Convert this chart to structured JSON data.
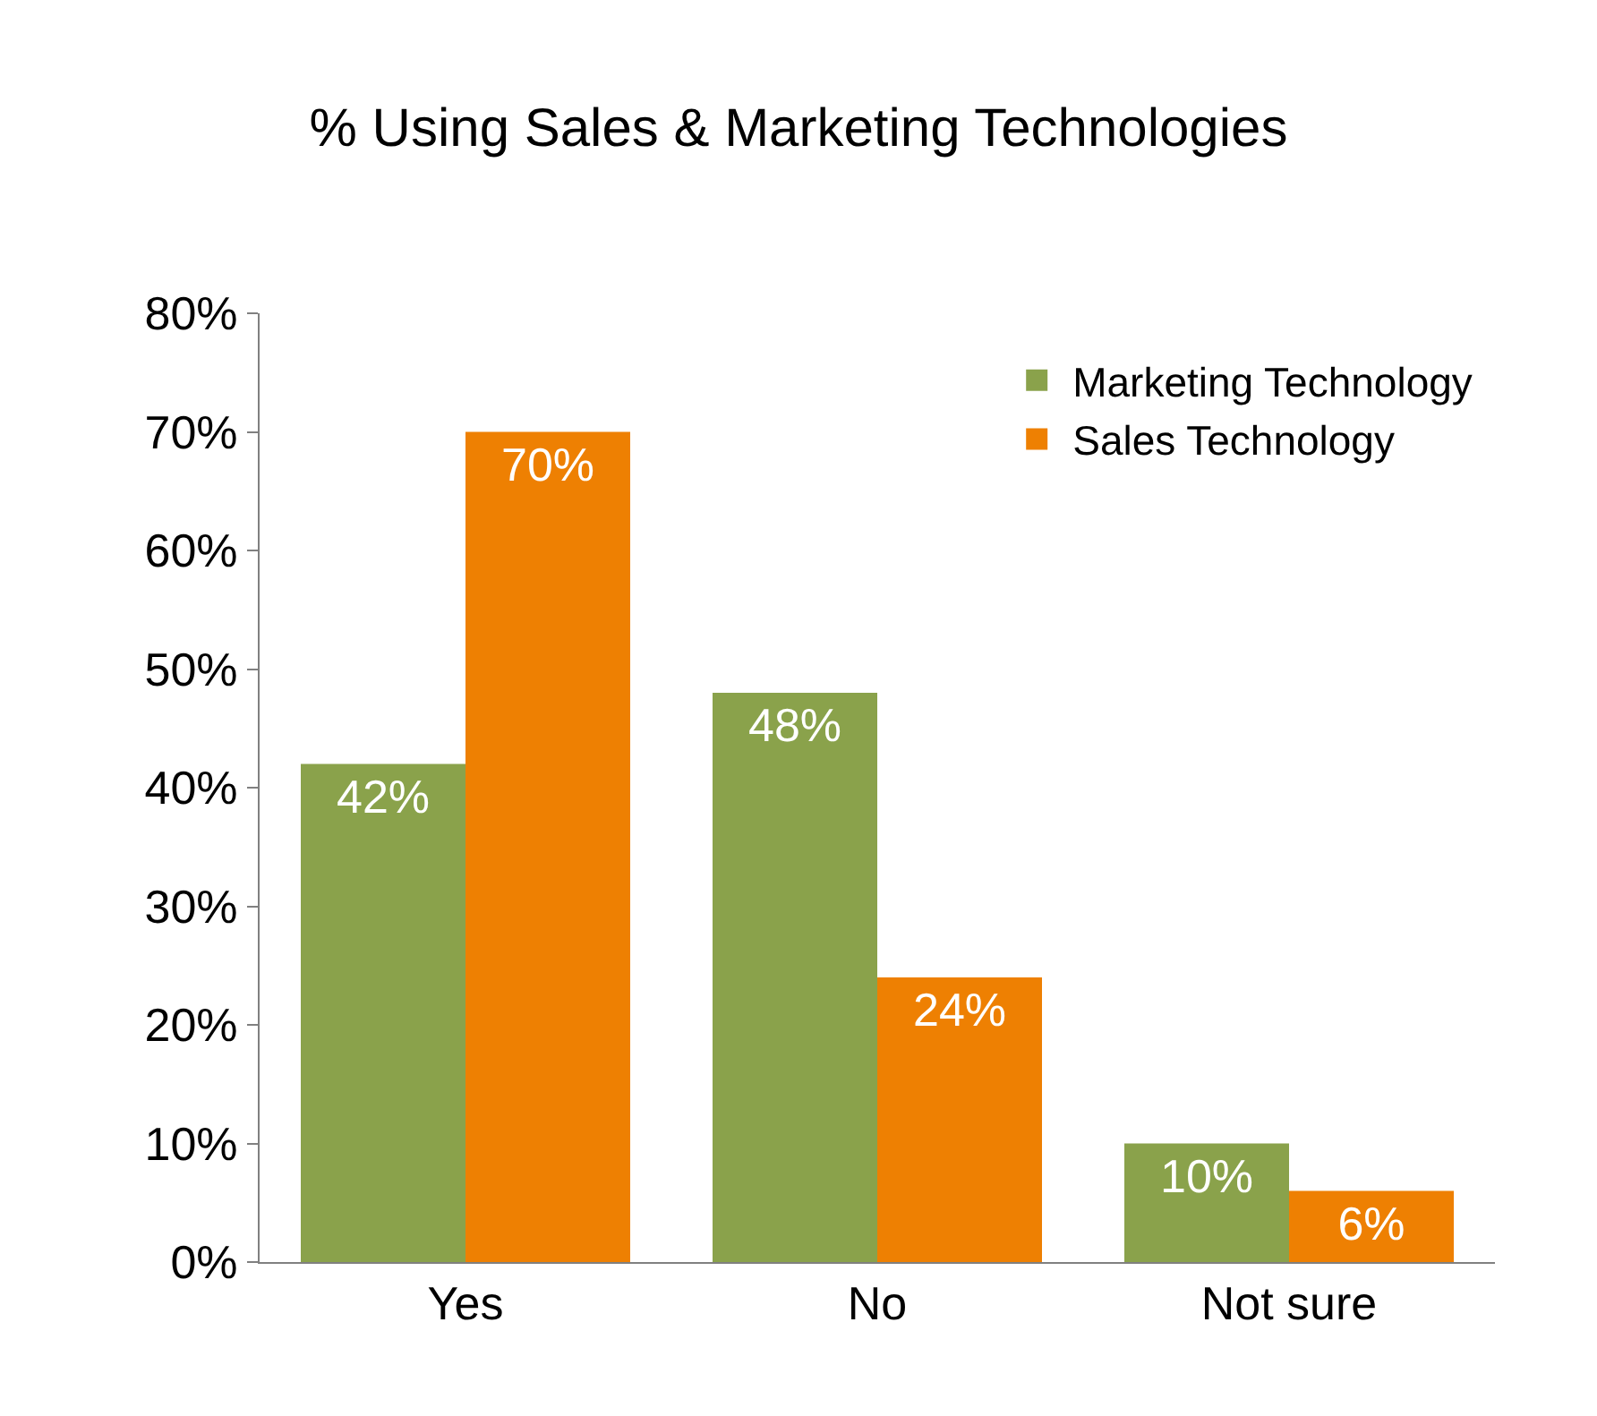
{
  "chart_data": {
    "type": "bar",
    "title": "% Using Sales & Marketing Technologies",
    "categories": [
      "Yes",
      "No",
      "Not sure"
    ],
    "series": [
      {
        "name": "Marketing Technology",
        "color": "#8aa24b",
        "values": [
          42,
          48,
          10
        ],
        "value_labels": [
          "42%",
          "48%",
          "10%"
        ]
      },
      {
        "name": "Sales Technology",
        "color": "#ee8002",
        "values": [
          70,
          24,
          6
        ],
        "value_labels": [
          "70%",
          "24%",
          "6%"
        ]
      }
    ],
    "ylim": [
      0,
      80
    ],
    "yticks": [
      {
        "value": 0,
        "label": "0%"
      },
      {
        "value": 10,
        "label": "10%"
      },
      {
        "value": 20,
        "label": "20%"
      },
      {
        "value": 30,
        "label": "30%"
      },
      {
        "value": 40,
        "label": "40%"
      },
      {
        "value": 50,
        "label": "50%"
      },
      {
        "value": 60,
        "label": "60%"
      },
      {
        "value": 70,
        "label": "70%"
      },
      {
        "value": 80,
        "label": "80%"
      }
    ],
    "legend": "top right"
  }
}
